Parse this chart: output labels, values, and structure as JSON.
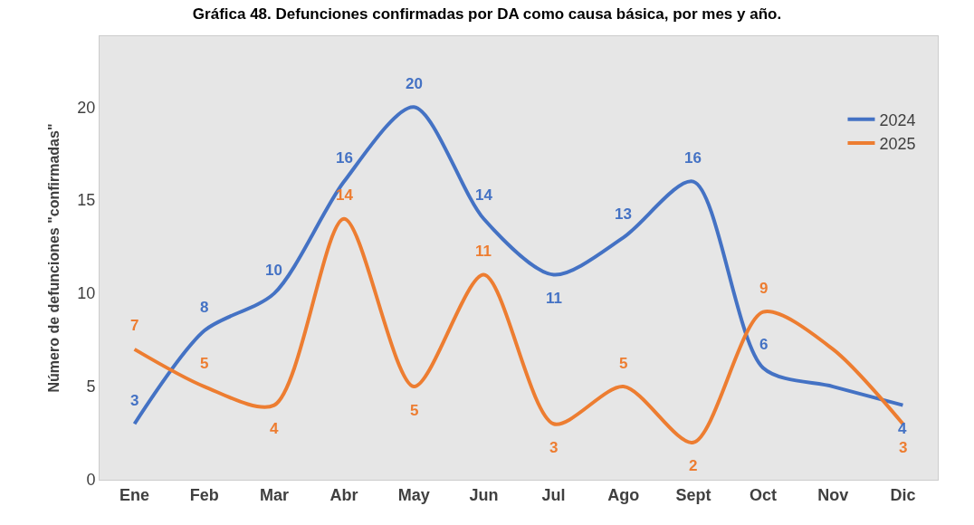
{
  "chart_data": {
    "type": "line",
    "title": "Gráfica 48. Defunciones confirmadas por DA como causa básica, por mes y año.",
    "ylabel": "Número de defunciones \"confirmadas\"",
    "categories": [
      "Ene",
      "Feb",
      "Mar",
      "Abr",
      "May",
      "Jun",
      "Jul",
      "Ago",
      "Sept",
      "Oct",
      "Nov",
      "Dic"
    ],
    "series": [
      {
        "name": "2024",
        "color": "#4472c4",
        "values": [
          3,
          8,
          10,
          16,
          20,
          14,
          11,
          13,
          16,
          6,
          5,
          4
        ],
        "value_labels": [
          "3",
          "8",
          "10",
          "16",
          "20",
          "14",
          "11",
          "13",
          "16",
          "6",
          null,
          "4"
        ]
      },
      {
        "name": "2025",
        "color": "#ed7d31",
        "values": [
          7,
          5,
          4,
          14,
          5,
          11,
          3,
          5,
          2,
          9,
          7,
          3
        ],
        "value_labels": [
          "7",
          "5",
          "4",
          "14",
          "5",
          "11",
          "3",
          "5",
          "2",
          "9",
          null,
          "3"
        ]
      }
    ],
    "ylim": [
      0,
      23.8
    ],
    "yticks": [
      0,
      5,
      10,
      15,
      20
    ],
    "grid": false,
    "legend": "top right",
    "marker": "none",
    "line_style": "solid"
  }
}
